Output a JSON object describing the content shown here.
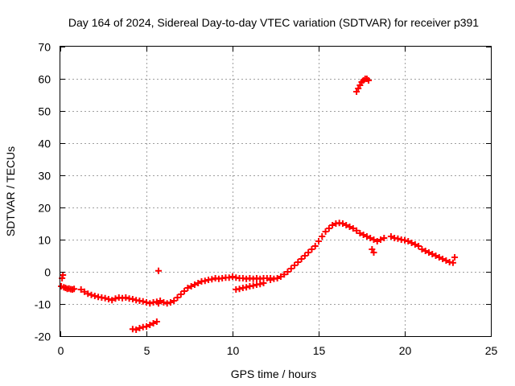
{
  "chart_data": {
    "type": "scatter",
    "title": "Day 164 of 2024, Sidereal Day-to-day VTEC variation (SDTVAR) for receiver p391",
    "xlabel": "GPS time / hours",
    "ylabel": "SDTVAR / TECUs",
    "xlim": [
      0,
      25
    ],
    "ylim": [
      -20,
      70
    ],
    "x_ticks": [
      0,
      5,
      10,
      15,
      20,
      25
    ],
    "y_ticks": [
      -20,
      -10,
      0,
      10,
      20,
      30,
      40,
      50,
      60,
      70
    ],
    "grid": true,
    "marker": "plus",
    "series": [
      {
        "name": "SDTVAR",
        "color": "#ff0000",
        "points": [
          [
            0.05,
            -4.5
          ],
          [
            0.1,
            -2.0
          ],
          [
            0.15,
            -1.0
          ],
          [
            0.2,
            -4.8
          ],
          [
            0.3,
            -5.0
          ],
          [
            0.4,
            -5.3
          ],
          [
            0.5,
            -5.2
          ],
          [
            0.6,
            -5.4
          ],
          [
            0.7,
            -5.5
          ],
          [
            0.8,
            -5.3
          ],
          [
            1.2,
            -5.5
          ],
          [
            1.4,
            -6.2
          ],
          [
            1.6,
            -6.8
          ],
          [
            1.8,
            -7.2
          ],
          [
            2.0,
            -7.5
          ],
          [
            2.2,
            -7.8
          ],
          [
            2.4,
            -8.0
          ],
          [
            2.6,
            -8.2
          ],
          [
            2.8,
            -8.5
          ],
          [
            3.0,
            -8.8
          ],
          [
            3.2,
            -8.3
          ],
          [
            3.4,
            -8.0
          ],
          [
            3.6,
            -8.2
          ],
          [
            3.8,
            -8.0
          ],
          [
            4.0,
            -8.3
          ],
          [
            4.2,
            -8.5
          ],
          [
            4.4,
            -8.8
          ],
          [
            4.6,
            -9.0
          ],
          [
            4.8,
            -9.2
          ],
          [
            5.0,
            -9.5
          ],
          [
            5.2,
            -9.8
          ],
          [
            5.4,
            -9.5
          ],
          [
            5.6,
            -9.3
          ],
          [
            5.7,
            -9.8
          ],
          [
            5.8,
            -9.0
          ],
          [
            6.0,
            -9.5
          ],
          [
            6.2,
            -9.8
          ],
          [
            6.4,
            -9.5
          ],
          [
            6.6,
            -9.0
          ],
          [
            6.8,
            -8.0
          ],
          [
            7.0,
            -7.0
          ],
          [
            7.2,
            -6.0
          ],
          [
            7.4,
            -5.0
          ],
          [
            7.6,
            -4.5
          ],
          [
            7.8,
            -4.0
          ],
          [
            8.0,
            -3.5
          ],
          [
            8.2,
            -3.0
          ],
          [
            8.4,
            -2.8
          ],
          [
            8.6,
            -2.5
          ],
          [
            8.8,
            -2.3
          ],
          [
            9.0,
            -2.0
          ],
          [
            9.2,
            -2.2
          ],
          [
            9.4,
            -2.0
          ],
          [
            9.6,
            -1.8
          ],
          [
            9.8,
            -1.8
          ],
          [
            10.0,
            -1.5
          ],
          [
            10.2,
            -1.8
          ],
          [
            10.4,
            -2.0
          ],
          [
            10.6,
            -2.0
          ],
          [
            10.8,
            -2.2
          ],
          [
            11.0,
            -2.0
          ],
          [
            11.2,
            -2.2
          ],
          [
            11.4,
            -2.0
          ],
          [
            11.6,
            -2.2
          ],
          [
            11.8,
            -2.0
          ],
          [
            12.0,
            -2.0
          ],
          [
            12.2,
            -2.0
          ],
          [
            10.2,
            -5.5
          ],
          [
            10.4,
            -5.3
          ],
          [
            10.6,
            -5.0
          ],
          [
            10.8,
            -4.8
          ],
          [
            11.0,
            -4.5
          ],
          [
            11.2,
            -4.3
          ],
          [
            11.4,
            -4.0
          ],
          [
            11.6,
            -3.8
          ],
          [
            11.8,
            -3.5
          ],
          [
            4.2,
            -17.8
          ],
          [
            4.4,
            -18.0
          ],
          [
            4.6,
            -17.5
          ],
          [
            4.8,
            -17.2
          ],
          [
            5.0,
            -17.0
          ],
          [
            5.2,
            -16.5
          ],
          [
            5.4,
            -16.0
          ],
          [
            5.6,
            -15.5
          ],
          [
            5.7,
            0.3
          ],
          [
            12.2,
            -2.5
          ],
          [
            12.4,
            -2.2
          ],
          [
            12.6,
            -2.0
          ],
          [
            12.8,
            -1.5
          ],
          [
            13.0,
            -0.8
          ],
          [
            13.2,
            0.0
          ],
          [
            13.4,
            1.0
          ],
          [
            13.6,
            2.0
          ],
          [
            13.8,
            3.0
          ],
          [
            14.0,
            4.0
          ],
          [
            14.2,
            5.0
          ],
          [
            14.4,
            6.0
          ],
          [
            14.6,
            7.0
          ],
          [
            14.8,
            8.0
          ],
          [
            15.0,
            9.5
          ],
          [
            15.2,
            11.0
          ],
          [
            15.4,
            12.5
          ],
          [
            15.6,
            13.5
          ],
          [
            15.8,
            14.5
          ],
          [
            16.0,
            15.0
          ],
          [
            16.2,
            15.2
          ],
          [
            16.4,
            15.0
          ],
          [
            16.6,
            14.5
          ],
          [
            16.8,
            14.0
          ],
          [
            17.0,
            13.5
          ],
          [
            17.2,
            12.8
          ],
          [
            17.4,
            12.0
          ],
          [
            17.6,
            11.5
          ],
          [
            17.8,
            11.0
          ],
          [
            18.0,
            10.5
          ],
          [
            18.2,
            10.0
          ],
          [
            18.4,
            9.5
          ],
          [
            18.6,
            10.0
          ],
          [
            18.8,
            10.5
          ],
          [
            18.2,
            6.0
          ],
          [
            18.1,
            7.0
          ],
          [
            19.2,
            11.0
          ],
          [
            19.4,
            10.5
          ],
          [
            19.6,
            10.3
          ],
          [
            19.8,
            10.0
          ],
          [
            20.0,
            9.8
          ],
          [
            20.2,
            9.5
          ],
          [
            20.4,
            9.0
          ],
          [
            20.6,
            8.5
          ],
          [
            20.8,
            8.0
          ],
          [
            21.0,
            7.0
          ],
          [
            21.2,
            6.5
          ],
          [
            21.4,
            6.0
          ],
          [
            21.6,
            5.5
          ],
          [
            21.8,
            5.0
          ],
          [
            22.0,
            4.5
          ],
          [
            22.2,
            4.0
          ],
          [
            22.4,
            3.5
          ],
          [
            22.6,
            3.0
          ],
          [
            22.8,
            2.8
          ],
          [
            22.9,
            4.5
          ],
          [
            17.2,
            56.0
          ],
          [
            17.3,
            57.0
          ],
          [
            17.4,
            58.0
          ],
          [
            17.5,
            59.0
          ],
          [
            17.6,
            59.5
          ],
          [
            17.7,
            60.0
          ],
          [
            17.8,
            60.0
          ],
          [
            17.9,
            59.5
          ]
        ]
      }
    ]
  }
}
